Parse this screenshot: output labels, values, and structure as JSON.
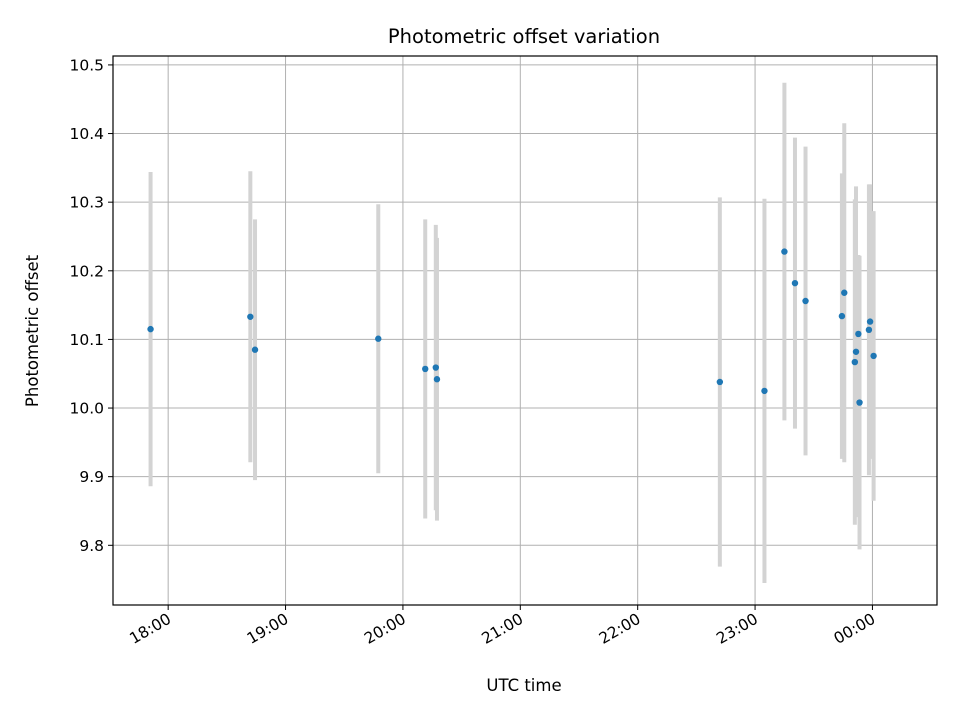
{
  "chart_data": {
    "type": "scatter",
    "title": "Photometric offset variation",
    "xlabel": "UTC time",
    "ylabel": "Photometric offset",
    "x_unit": "hours UTC (values past midnight continue beyond 24)",
    "xlim": [
      17.53,
      24.55
    ],
    "ylim": [
      9.713,
      10.513
    ],
    "x_ticks": [
      {
        "value": 18,
        "label": "18:00"
      },
      {
        "value": 19,
        "label": "19:00"
      },
      {
        "value": 20,
        "label": "20:00"
      },
      {
        "value": 21,
        "label": "21:00"
      },
      {
        "value": 22,
        "label": "22:00"
      },
      {
        "value": 23,
        "label": "23:00"
      },
      {
        "value": 24,
        "label": "00:00"
      }
    ],
    "y_ticks": [
      {
        "value": 9.8,
        "label": "9.8"
      },
      {
        "value": 9.9,
        "label": "9.9"
      },
      {
        "value": 10.0,
        "label": "10.0"
      },
      {
        "value": 10.1,
        "label": "10.1"
      },
      {
        "value": 10.2,
        "label": "10.2"
      },
      {
        "value": 10.3,
        "label": "10.3"
      },
      {
        "value": 10.4,
        "label": "10.4"
      },
      {
        "value": 10.5,
        "label": "10.5"
      }
    ],
    "grid": true,
    "legend": "none",
    "colors": {
      "point": "#1f77b4",
      "errorbar": "#d3d3d3",
      "grid": "#b0b0b0",
      "axes": "#000000"
    },
    "points": [
      {
        "x": 17.85,
        "y": 10.115,
        "err": 0.229
      },
      {
        "x": 18.7,
        "y": 10.133,
        "err": 0.212
      },
      {
        "x": 18.74,
        "y": 10.085,
        "err": 0.19
      },
      {
        "x": 19.79,
        "y": 10.101,
        "err": 0.196
      },
      {
        "x": 20.19,
        "y": 10.057,
        "err": 0.218
      },
      {
        "x": 20.28,
        "y": 10.059,
        "err": 0.208
      },
      {
        "x": 20.29,
        "y": 10.042,
        "err": 0.206
      },
      {
        "x": 22.7,
        "y": 10.038,
        "err": 0.269
      },
      {
        "x": 23.08,
        "y": 10.025,
        "err": 0.28
      },
      {
        "x": 23.25,
        "y": 10.228,
        "err": 0.246
      },
      {
        "x": 23.34,
        "y": 10.182,
        "err": 0.212
      },
      {
        "x": 23.43,
        "y": 10.156,
        "err": 0.225
      },
      {
        "x": 23.74,
        "y": 10.134,
        "err": 0.208
      },
      {
        "x": 23.76,
        "y": 10.168,
        "err": 0.247
      },
      {
        "x": 23.85,
        "y": 10.067,
        "err": 0.237
      },
      {
        "x": 23.86,
        "y": 10.082,
        "err": 0.241
      },
      {
        "x": 23.88,
        "y": 10.108,
        "err": 0.115
      },
      {
        "x": 23.89,
        "y": 10.008,
        "err": 0.214
      },
      {
        "x": 23.97,
        "y": 10.114,
        "err": 0.212
      },
      {
        "x": 23.98,
        "y": 10.126,
        "err": 0.2
      },
      {
        "x": 24.01,
        "y": 10.076,
        "err": 0.211
      }
    ]
  }
}
